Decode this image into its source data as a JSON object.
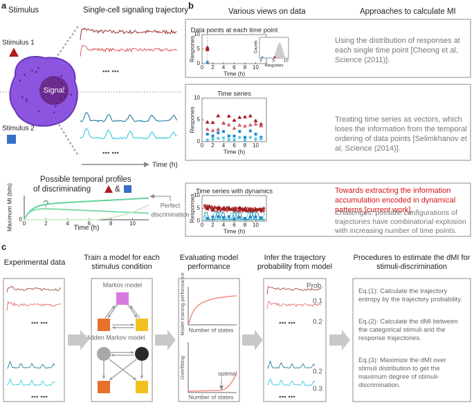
{
  "panel_a": {
    "label": "a",
    "stimulus": "Stimulus",
    "trajectory_title": "Single-cell signaling trajectory",
    "stimulus_1": "Stimulus 1",
    "stimulus_2": "Stimulus 2",
    "signal": "Signal",
    "ellipsis": "••• •••",
    "time_axis": "Time (h)",
    "profiles_line_1": "Possible temporal profiles",
    "profiles_line_2": "of discriminating",
    "amp": "&",
    "mi_chart": {
      "ylabel": "Maximum MI (bits)",
      "xlabel": "Time (h)",
      "yticks": [
        0
      ],
      "xticks": [
        0,
        2,
        4,
        6,
        8,
        10
      ],
      "question": "?",
      "note_1": "Perfect",
      "note_2": "discrimination"
    }
  },
  "panel_b": {
    "label": "b",
    "views_title": "Various views on data",
    "approaches_title": "Approaches to calculate MI",
    "boxes": [
      {
        "chart_title": "Data points at each time point",
        "ylabel": "Respones",
        "xlabel": "Time (h)",
        "yticks": [
          0,
          5,
          10
        ],
        "xticks": [
          0,
          2,
          4,
          6,
          8,
          10
        ],
        "inset": {
          "ylabel": "Counts",
          "xlabel": "Respones",
          "xticks": [
            0,
            5,
            10
          ]
        },
        "text": "Using the distribution of responses at each single time point [Cheong et al, Science (2011)]."
      },
      {
        "chart_title": "Time series",
        "ylabel": "Respones",
        "xlabel": "Time (h)",
        "yticks": [
          0,
          5,
          10
        ],
        "xticks": [
          0,
          2,
          4,
          6,
          8,
          10
        ],
        "text": "Treating time series as vectors, which loses the information from the temporal ordering of data points [Selimkhanov et al, Science (2014)]."
      },
      {
        "chart_title": "Time series with dynamics",
        "ylabel": "Responses",
        "xlabel": "Time (h)",
        "yticks": [
          0,
          5,
          10
        ],
        "xticks": [
          0,
          2,
          4,
          6,
          8,
          10
        ],
        "text_red": "Towards extracting the information accumulation encoded in dynamical patterns [current work].",
        "text": "Challenges: possible configurations of trajectories have combinatorial explosion with increasing number of time points."
      }
    ]
  },
  "panel_c": {
    "label": "c",
    "headers": [
      "Experimental data",
      "Train a model for each stimulus condition",
      "Evaluating model performance",
      "Infer the trajectory probability from model",
      "Procedures to estimate the dMI for stimuli-discrimination"
    ],
    "ellipsis": "••• •••",
    "markov": "Markov model",
    "hidden_markov": "Hidden Markov model",
    "perf_ylabel": "Model training performance",
    "states": "Number of states",
    "overfit_ylabel": "Overfitting",
    "optimal": "optimal",
    "prob_header": "Prob.",
    "probs": [
      "0.1",
      "0.2",
      "0.2",
      "0.3"
    ],
    "equations": [
      "Eq.(1): Calculate the trajectory entropy by the trajectory probability.",
      "Eq.(2): Calculate the dMI between the categorical stimuli and the response trajectories.",
      "Eq.(3): Maximize the dMI over stimuli distribution to get the maximum degree of stimuli-discrimination."
    ]
  }
}
